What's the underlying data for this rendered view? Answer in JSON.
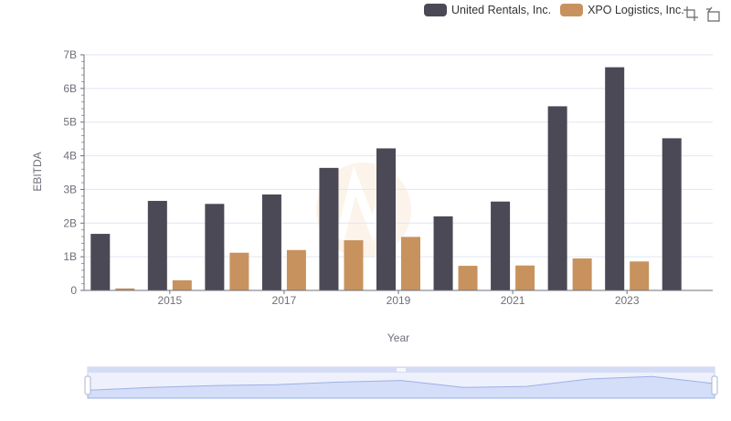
{
  "legend": [
    {
      "name": "United Rentals, Inc.",
      "color": "#4a4955"
    },
    {
      "name": "XPO Logistics, Inc.",
      "color": "#c8925e"
    }
  ],
  "toolbox": {
    "zoom_icon": "zoom-select-icon",
    "reset_icon": "zoom-reset-icon"
  },
  "chart_data": {
    "type": "bar",
    "xlabel": "Year",
    "ylabel": "EBITDA",
    "categories": [
      "2014",
      "2015",
      "2016",
      "2017",
      "2018",
      "2019",
      "2020",
      "2021",
      "2022",
      "2023",
      "2024"
    ],
    "x_tick_labels": [
      "2015",
      "2017",
      "2019",
      "2021",
      "2023"
    ],
    "y_tick_labels": [
      "0",
      "1B",
      "2B",
      "3B",
      "4B",
      "5B",
      "6B",
      "7B"
    ],
    "ylim": [
      0,
      7000000000
    ],
    "grid": true,
    "legend_position": "top-right",
    "series": [
      {
        "name": "United Rentals, Inc.",
        "color": "#4a4955",
        "values": [
          1680000000,
          2660000000,
          2570000000,
          2850000000,
          3640000000,
          4220000000,
          2200000000,
          2640000000,
          5470000000,
          6630000000,
          4520000000
        ]
      },
      {
        "name": "XPO Logistics, Inc.",
        "color": "#c8925e",
        "values": [
          60000000,
          300000000,
          1120000000,
          1200000000,
          1490000000,
          1590000000,
          730000000,
          740000000,
          950000000,
          860000000,
          null
        ]
      }
    ]
  }
}
